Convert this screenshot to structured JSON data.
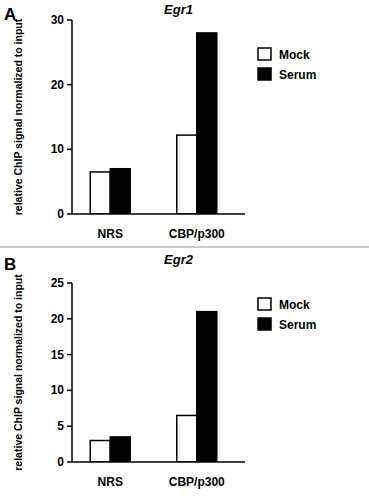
{
  "chart_data": [
    {
      "type": "bar",
      "title": "Egr1",
      "annotations": [
        "A"
      ],
      "y_label": "relative ChIP signal normalized to input",
      "categories": [
        "NRS",
        "CBP/p300"
      ],
      "series": [
        {
          "name": "Mock",
          "color": "#ffffff",
          "values": [
            6.5,
            12.2
          ]
        },
        {
          "name": "Serum",
          "color": "#000000",
          "values": [
            7,
            28
          ]
        }
      ],
      "ylim": [
        0,
        30
      ],
      "yticks": [
        0,
        10,
        20,
        30
      ],
      "grid": false,
      "legend": "right"
    },
    {
      "type": "bar",
      "title": "Egr2",
      "annotations": [
        "B"
      ],
      "y_label": "relative ChIP signal normalized to input",
      "categories": [
        "NRS",
        "CBP/p300"
      ],
      "series": [
        {
          "name": "Mock",
          "color": "#ffffff",
          "values": [
            3,
            6.5
          ]
        },
        {
          "name": "Serum",
          "color": "#000000",
          "values": [
            3.5,
            21
          ]
        }
      ],
      "ylim": [
        0,
        25
      ],
      "yticks": [
        0,
        5,
        10,
        15,
        20,
        25
      ],
      "grid": false,
      "legend": "right"
    }
  ]
}
